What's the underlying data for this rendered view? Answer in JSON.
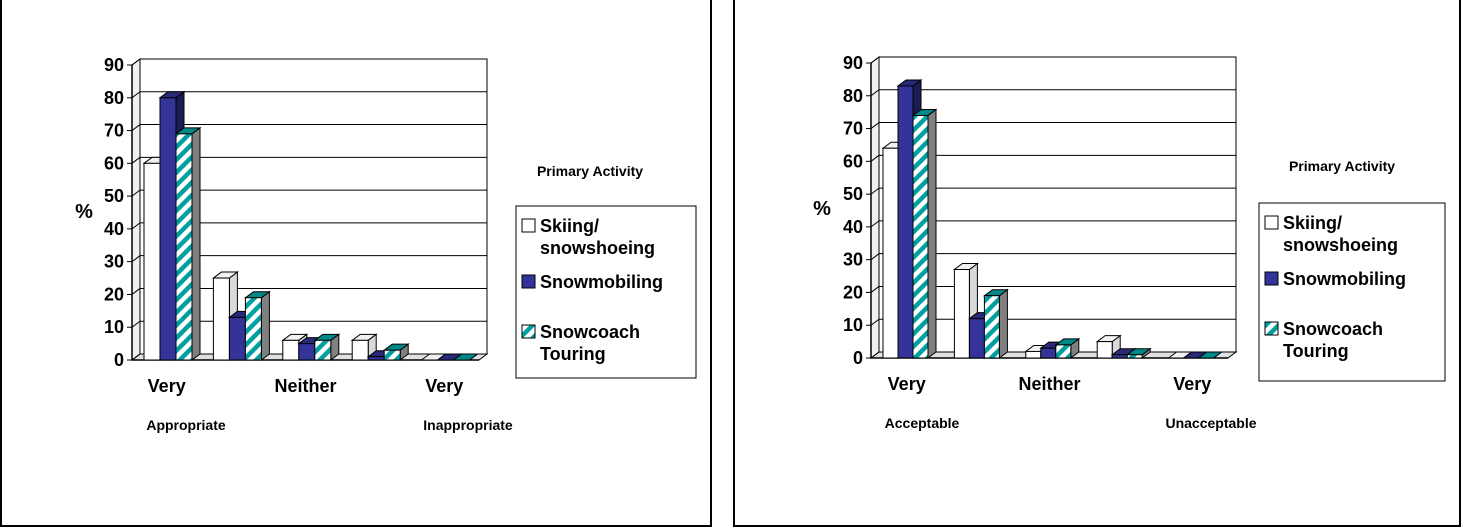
{
  "chart_data": [
    {
      "type": "bar",
      "ylabel": "%",
      "yticks": [
        0,
        10,
        20,
        30,
        40,
        50,
        60,
        70,
        80,
        90
      ],
      "ylim": [
        0,
        90
      ],
      "categories": [
        "Very Appropriate",
        "",
        "Neither",
        "",
        "Very Inappropriate"
      ],
      "xtick_labels": [
        "Very",
        "Neither",
        "Very"
      ],
      "xtick_positions": [
        0,
        2,
        4
      ],
      "x_end_labels": [
        "Appropriate",
        "Inappropriate"
      ],
      "legend_title": "Primary Activity",
      "legend_position": "right",
      "grid": true,
      "style": "3d",
      "series": [
        {
          "name": "Skiing/ snowshoeing",
          "color": "#ffffff",
          "pattern": "plain",
          "values": [
            60,
            25,
            6,
            6,
            0
          ]
        },
        {
          "name": "Snowmobiling",
          "color": "#333399",
          "pattern": "plain",
          "values": [
            80,
            13,
            5,
            1,
            0
          ]
        },
        {
          "name": "Snowcoach Touring",
          "color": "#00a0a0",
          "pattern": "diagonal",
          "values": [
            69,
            19,
            6,
            3,
            0
          ]
        }
      ]
    },
    {
      "type": "bar",
      "ylabel": "%",
      "yticks": [
        0,
        10,
        20,
        30,
        40,
        50,
        60,
        70,
        80,
        90
      ],
      "ylim": [
        0,
        90
      ],
      "categories": [
        "Very Acceptable",
        "",
        "Neither",
        "",
        "Very Unacceptable"
      ],
      "xtick_labels": [
        "Very",
        "Neither",
        "Very"
      ],
      "xtick_positions": [
        0,
        2,
        4
      ],
      "x_end_labels": [
        "Acceptable",
        "Unacceptable"
      ],
      "legend_title": "Primary Activity",
      "legend_position": "right",
      "grid": true,
      "style": "3d",
      "series": [
        {
          "name": "Skiing/ snowshoeing",
          "color": "#ffffff",
          "pattern": "plain",
          "values": [
            64,
            27,
            2,
            5,
            0
          ]
        },
        {
          "name": "Snowmobiling",
          "color": "#333399",
          "pattern": "plain",
          "values": [
            83,
            12,
            3,
            1,
            0
          ]
        },
        {
          "name": "Snowcoach Touring",
          "color": "#00a0a0",
          "pattern": "diagonal",
          "values": [
            74,
            19,
            4,
            1,
            0
          ]
        }
      ]
    }
  ]
}
